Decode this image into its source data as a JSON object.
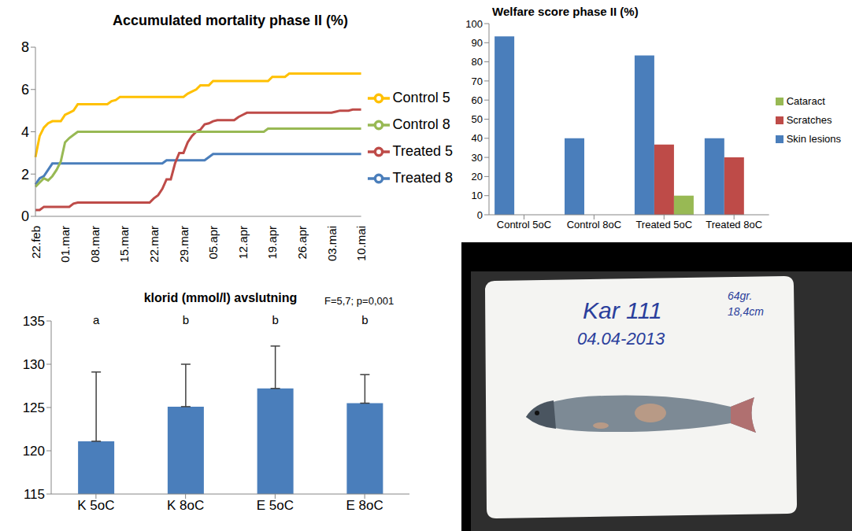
{
  "chart_data": [
    {
      "type": "line",
      "title": "Accumulated mortality phase II (%)",
      "categories": [
        "22.feb",
        null,
        null,
        null,
        null,
        null,
        null,
        "01.mar",
        null,
        null,
        null,
        null,
        null,
        null,
        "08.mar",
        null,
        null,
        null,
        null,
        null,
        null,
        "15.mar",
        null,
        null,
        null,
        null,
        null,
        null,
        "22.mar",
        null,
        null,
        null,
        null,
        null,
        null,
        "29.mar",
        null,
        null,
        null,
        null,
        null,
        null,
        "05.apr",
        null,
        null,
        null,
        null,
        null,
        null,
        "12.apr",
        null,
        null,
        null,
        null,
        null,
        null,
        "19.apr",
        null,
        null,
        null,
        null,
        null,
        null,
        "26.apr",
        null,
        null,
        null,
        null,
        null,
        null,
        "03.mai",
        null,
        null,
        null,
        null,
        null,
        null,
        "10.mai"
      ],
      "series": [
        {
          "name": "Treated 8",
          "color": "#4A7EBB",
          "values": [
            1.5,
            1.8,
            1.9,
            2.2,
            2.5,
            2.5,
            2.5,
            2.5,
            2.5,
            2.5,
            2.5,
            2.5,
            2.5,
            2.5,
            2.5,
            2.5,
            2.5,
            2.5,
            2.5,
            2.5,
            2.5,
            2.5,
            2.5,
            2.5,
            2.5,
            2.5,
            2.5,
            2.5,
            2.5,
            2.5,
            2.5,
            2.65,
            2.65,
            2.65,
            2.65,
            2.65,
            2.65,
            2.65,
            2.65,
            2.65,
            2.65,
            2.8,
            2.95,
            2.95,
            2.95,
            2.95,
            2.95,
            2.95,
            2.95,
            2.95,
            2.95,
            2.95,
            2.95,
            2.95,
            2.95,
            2.95,
            2.95,
            2.95,
            2.95,
            2.95,
            2.95,
            2.95,
            2.95,
            2.95,
            2.95,
            2.95,
            2.95,
            2.95,
            2.95,
            2.95,
            2.95,
            2.95,
            2.95,
            2.95,
            2.95,
            2.95,
            2.95,
            2.95
          ]
        },
        {
          "name": "Treated 5",
          "color": "#BE4B48",
          "values": [
            0.3,
            0.3,
            0.45,
            0.45,
            0.45,
            0.45,
            0.45,
            0.45,
            0.45,
            0.6,
            0.65,
            0.65,
            0.65,
            0.65,
            0.65,
            0.65,
            0.65,
            0.65,
            0.65,
            0.65,
            0.65,
            0.65,
            0.65,
            0.65,
            0.65,
            0.65,
            0.65,
            0.65,
            0.85,
            1.0,
            1.3,
            1.75,
            1.75,
            2.5,
            3.0,
            3.0,
            3.5,
            3.8,
            4.0,
            4.1,
            4.35,
            4.4,
            4.5,
            4.55,
            4.55,
            4.55,
            4.55,
            4.55,
            4.7,
            4.8,
            4.9,
            4.9,
            4.9,
            4.9,
            4.9,
            4.9,
            4.9,
            4.9,
            4.9,
            4.9,
            4.9,
            4.9,
            4.9,
            4.9,
            4.9,
            4.9,
            4.9,
            4.9,
            4.9,
            4.9,
            4.9,
            4.95,
            5.0,
            5.0,
            5.0,
            5.05,
            5.05,
            5.05
          ]
        },
        {
          "name": "Control 8",
          "color": "#98B954",
          "values": [
            1.4,
            1.6,
            1.8,
            1.7,
            1.9,
            2.2,
            2.6,
            3.5,
            3.7,
            3.85,
            4.0,
            4.0,
            4.0,
            4.0,
            4.0,
            4.0,
            4.0,
            4.0,
            4.0,
            4.0,
            4.0,
            4.0,
            4.0,
            4.0,
            4.0,
            4.0,
            4.0,
            4.0,
            4.0,
            4.0,
            4.0,
            4.0,
            4.0,
            4.0,
            4.0,
            4.0,
            4.0,
            4.0,
            4.0,
            4.0,
            4.0,
            4.0,
            4.0,
            4.0,
            4.0,
            4.0,
            4.0,
            4.0,
            4.0,
            4.0,
            4.0,
            4.0,
            4.0,
            4.0,
            4.0,
            4.15,
            4.15,
            4.15,
            4.15,
            4.15,
            4.15,
            4.15,
            4.15,
            4.15,
            4.15,
            4.15,
            4.15,
            4.15,
            4.15,
            4.15,
            4.15,
            4.15,
            4.15,
            4.15,
            4.15,
            4.15,
            4.15,
            4.15
          ]
        },
        {
          "name": "Control 5",
          "color": "#FFC000",
          "values": [
            2.8,
            3.8,
            4.2,
            4.4,
            4.5,
            4.5,
            4.5,
            4.8,
            4.9,
            5.0,
            5.3,
            5.3,
            5.3,
            5.3,
            5.3,
            5.3,
            5.3,
            5.3,
            5.45,
            5.5,
            5.65,
            5.65,
            5.65,
            5.65,
            5.65,
            5.65,
            5.65,
            5.65,
            5.65,
            5.65,
            5.65,
            5.65,
            5.65,
            5.65,
            5.65,
            5.65,
            5.8,
            5.9,
            6.0,
            6.2,
            6.2,
            6.2,
            6.4,
            6.4,
            6.4,
            6.4,
            6.4,
            6.4,
            6.4,
            6.4,
            6.4,
            6.4,
            6.4,
            6.4,
            6.4,
            6.4,
            6.6,
            6.6,
            6.6,
            6.6,
            6.75,
            6.75,
            6.75,
            6.75,
            6.75,
            6.75,
            6.75,
            6.75,
            6.75,
            6.75,
            6.75,
            6.75,
            6.75,
            6.75,
            6.75,
            6.75,
            6.75,
            6.75
          ]
        }
      ],
      "ylim": [
        0,
        8
      ],
      "yticks": [
        0,
        2,
        4,
        6,
        8
      ],
      "grid": false,
      "legend": "right"
    },
    {
      "type": "bar",
      "title": "Welfare score phase II (%)",
      "categories": [
        "Control 5oC",
        "Control 8oC",
        "Treated 5oC",
        "Treated 8oC"
      ],
      "series": [
        {
          "name": "Skin lesions",
          "color": "#4A7EBB",
          "values": [
            93.3,
            40,
            83.3,
            40
          ]
        },
        {
          "name": "Scratches",
          "color": "#BE4B48",
          "values": [
            0,
            0,
            36.7,
            30
          ]
        },
        {
          "name": "Cataract",
          "color": "#98B954",
          "values": [
            0,
            0,
            10,
            0
          ]
        }
      ],
      "ylim": [
        0,
        100
      ],
      "yticks": [
        0,
        10,
        20,
        30,
        40,
        50,
        60,
        70,
        80,
        90,
        100
      ],
      "grid": false,
      "legend": "right"
    },
    {
      "type": "bar",
      "title": "klorid (mmol/l) avslutning",
      "annotation": "F=5,7; p=0,001",
      "categories": [
        "K 5oC",
        "K 8oC",
        "E 5oC",
        "E 8oC"
      ],
      "values": [
        121.1,
        125.1,
        127.2,
        125.5
      ],
      "errors": [
        8.0,
        4.9,
        4.9,
        3.3
      ],
      "group_letters": [
        "a",
        "b",
        "b",
        "b"
      ],
      "color": "#4A7EBB",
      "ylim": [
        115,
        135
      ],
      "yticks": [
        115,
        120,
        125,
        130,
        135
      ],
      "grid": false
    }
  ],
  "photo": {
    "texts": [
      "Kar 111",
      "04.04-2013",
      "64gr.",
      "18,4cm"
    ]
  }
}
